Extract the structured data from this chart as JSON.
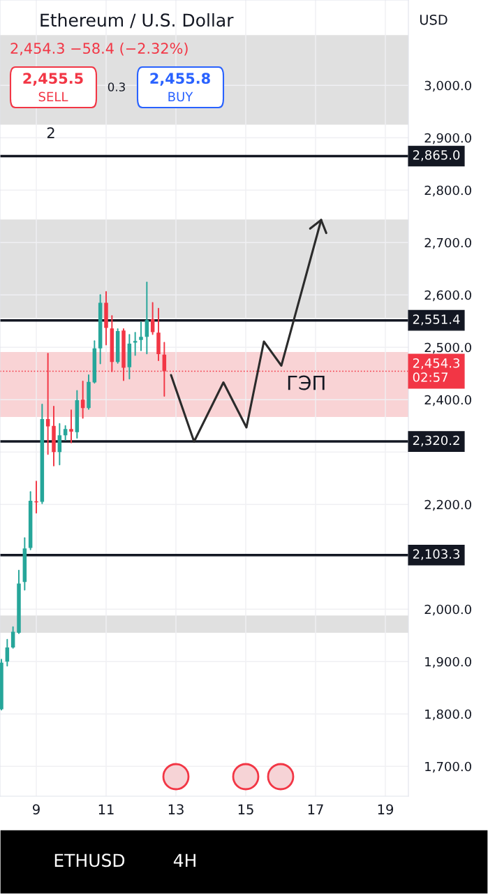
{
  "chart_data": {
    "type": "candlestick",
    "title": "Ethereum / U.S. Dollar",
    "subtitle": "2,454.3 −58.4 (−2.32%)",
    "annotations": [
      "2,455.5",
      "SELL",
      "0.3",
      "2,455.8",
      "BUY",
      "2",
      "USD",
      "ETHUSD",
      "4H"
    ],
    "x": [
      8.0,
      8.167,
      8.333,
      8.5,
      8.667,
      8.833,
      9.0,
      9.167,
      9.333,
      9.5,
      9.667,
      9.833,
      10.0,
      10.167,
      10.333,
      10.5,
      10.667,
      10.833,
      11.0,
      11.167,
      11.333,
      11.5,
      11.667,
      11.833,
      12.0,
      12.167,
      12.333,
      12.5,
      12.667
    ],
    "ohlc": [
      [
        1809,
        1904,
        1808,
        1898
      ],
      [
        1900,
        1942,
        1892,
        1927
      ],
      [
        1927,
        1966,
        1926,
        1957
      ],
      [
        1955,
        2074,
        1954,
        2049
      ],
      [
        2052,
        2136,
        2037,
        2116
      ],
      [
        2117,
        2224,
        2114,
        2207
      ],
      [
        2206,
        2244,
        2184,
        2204
      ],
      [
        2205,
        2391,
        2202,
        2363
      ],
      [
        2363,
        2488,
        2296,
        2349
      ],
      [
        2350,
        2387,
        2274,
        2300
      ],
      [
        2300,
        2354,
        2276,
        2332
      ],
      [
        2332,
        2350,
        2323,
        2344
      ],
      [
        2344,
        2380,
        2318,
        2339
      ],
      [
        2338,
        2417,
        2327,
        2399
      ],
      [
        2400,
        2435,
        2365,
        2384
      ],
      [
        2384,
        2447,
        2382,
        2434
      ],
      [
        2433,
        2512,
        2432,
        2498
      ],
      [
        2498,
        2600,
        2469,
        2585
      ],
      [
        2585,
        2606,
        2505,
        2537
      ],
      [
        2536,
        2560,
        2454,
        2472
      ],
      [
        2472,
        2535,
        2470,
        2531
      ],
      [
        2532,
        2535,
        2437,
        2461
      ],
      [
        2462,
        2524,
        2440,
        2507
      ],
      [
        2509,
        2528,
        2485,
        2512
      ],
      [
        2514,
        2548,
        2494,
        2520
      ],
      [
        2520,
        2624,
        2488,
        2552
      ],
      [
        2554,
        2585,
        2525,
        2529
      ],
      [
        2528,
        2574,
        2475,
        2487
      ],
      [
        2486,
        2509,
        2407,
        2454.3
      ]
    ],
    "series": [
      {
        "type": "line",
        "color": "#2b2b2b",
        "x": [
          12.86,
          13.52,
          14.36,
          15.02,
          15.52,
          16.02,
          17.16
        ],
        "values": [
          2447,
          2320,
          2433,
          2347,
          2511,
          2465,
          2743
        ]
      }
    ],
    "ref_lines": [
      {
        "axis": "y",
        "value": 2865.0,
        "label": "2,865.0",
        "color": "#131722",
        "line_style": "solid"
      },
      {
        "axis": "y",
        "value": 2551.4,
        "label": "2,551.4",
        "color": "#131722",
        "line_style": "solid"
      },
      {
        "axis": "y",
        "value": 2320.2,
        "label": "2,320.2",
        "color": "#131722",
        "line_style": "solid"
      },
      {
        "axis": "y",
        "value": 2103.3,
        "label": "2,103.3",
        "color": "#131722",
        "line_style": "solid"
      },
      {
        "axis": "y",
        "value": 2454.3,
        "label": "2,454.3\n02:57",
        "color": "#f23645",
        "line_style": "dotted"
      }
    ],
    "bands": [
      {
        "axis": "y",
        "from": 2925,
        "to": 3096,
        "color": "#e0e0e0"
      },
      {
        "axis": "y",
        "from": 2556,
        "to": 2744,
        "color": "#e0e0e0"
      },
      {
        "axis": "y",
        "from": 1955,
        "to": 1988,
        "color": "#e0e0e0"
      },
      {
        "axis": "y",
        "from": 2367,
        "to": 2491,
        "color": "#f9d3d5",
        "label": "ГЭП"
      }
    ],
    "xlim": [
      7.96,
      19.66
    ],
    "xticks": [
      9,
      11,
      13,
      15,
      17,
      19
    ],
    "ylim": [
      1643,
      3163
    ],
    "yticks": [
      {
        "value": 1700,
        "label": "1,700.0"
      },
      {
        "value": 1800,
        "label": "1,800.0"
      },
      {
        "value": 1900,
        "label": "1,900.0"
      },
      {
        "value": 2000,
        "label": "2,000.0"
      },
      {
        "value": 2100,
        "label": null
      },
      {
        "value": 2200,
        "label": "2,200.0"
      },
      {
        "value": 2300,
        "label": null
      },
      {
        "value": 2400,
        "label": "2,400.0"
      },
      {
        "value": 2500,
        "label": "2,500.0"
      },
      {
        "value": 2600,
        "label": "2,600.0"
      },
      {
        "value": 2700,
        "label": "2,700.0"
      },
      {
        "value": 2800,
        "label": "2,800.0"
      },
      {
        "value": 2900,
        "label": "2,900.0"
      },
      {
        "value": 3000,
        "label": "3,000.0"
      }
    ],
    "grid": true,
    "legend": false
  }
}
